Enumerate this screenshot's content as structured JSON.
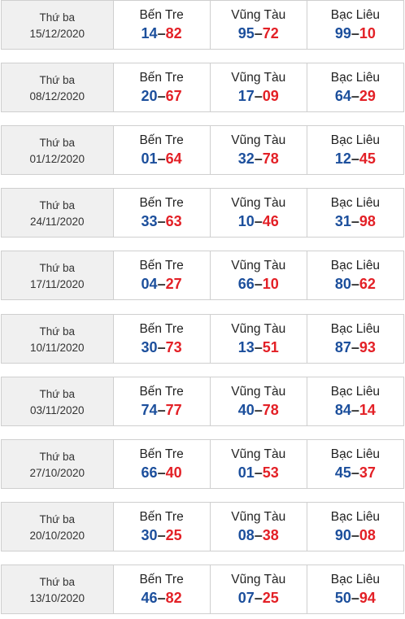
{
  "rows": [
    {
      "weekday": "Thứ ba",
      "date": "15/12/2020",
      "cells": [
        {
          "province": "Bến Tre",
          "a": "14",
          "b": "82"
        },
        {
          "province": "Vũng Tàu",
          "a": "95",
          "b": "72"
        },
        {
          "province": "Bạc Liêu",
          "a": "99",
          "b": "10"
        }
      ]
    },
    {
      "weekday": "Thứ ba",
      "date": "08/12/2020",
      "cells": [
        {
          "province": "Bến Tre",
          "a": "20",
          "b": "67"
        },
        {
          "province": "Vũng Tàu",
          "a": "17",
          "b": "09"
        },
        {
          "province": "Bạc Liêu",
          "a": "64",
          "b": "29"
        }
      ]
    },
    {
      "weekday": "Thứ ba",
      "date": "01/12/2020",
      "cells": [
        {
          "province": "Bến Tre",
          "a": "01",
          "b": "64"
        },
        {
          "province": "Vũng Tàu",
          "a": "32",
          "b": "78"
        },
        {
          "province": "Bạc Liêu",
          "a": "12",
          "b": "45"
        }
      ]
    },
    {
      "weekday": "Thứ ba",
      "date": "24/11/2020",
      "cells": [
        {
          "province": "Bến Tre",
          "a": "33",
          "b": "63"
        },
        {
          "province": "Vũng Tàu",
          "a": "10",
          "b": "46"
        },
        {
          "province": "Bạc Liêu",
          "a": "31",
          "b": "98"
        }
      ]
    },
    {
      "weekday": "Thứ ba",
      "date": "17/11/2020",
      "cells": [
        {
          "province": "Bến Tre",
          "a": "04",
          "b": "27"
        },
        {
          "province": "Vũng Tàu",
          "a": "66",
          "b": "10"
        },
        {
          "province": "Bạc Liêu",
          "a": "80",
          "b": "62"
        }
      ]
    },
    {
      "weekday": "Thứ ba",
      "date": "10/11/2020",
      "cells": [
        {
          "province": "Bến Tre",
          "a": "30",
          "b": "73"
        },
        {
          "province": "Vũng Tàu",
          "a": "13",
          "b": "51"
        },
        {
          "province": "Bạc Liêu",
          "a": "87",
          "b": "93"
        }
      ]
    },
    {
      "weekday": "Thứ ba",
      "date": "03/11/2020",
      "cells": [
        {
          "province": "Bến Tre",
          "a": "74",
          "b": "77"
        },
        {
          "province": "Vũng Tàu",
          "a": "40",
          "b": "78"
        },
        {
          "province": "Bạc Liêu",
          "a": "84",
          "b": "14"
        }
      ]
    },
    {
      "weekday": "Thứ ba",
      "date": "27/10/2020",
      "cells": [
        {
          "province": "Bến Tre",
          "a": "66",
          "b": "40"
        },
        {
          "province": "Vũng Tàu",
          "a": "01",
          "b": "53"
        },
        {
          "province": "Bạc Liêu",
          "a": "45",
          "b": "37"
        }
      ]
    },
    {
      "weekday": "Thứ ba",
      "date": "20/10/2020",
      "cells": [
        {
          "province": "Bến Tre",
          "a": "30",
          "b": "25"
        },
        {
          "province": "Vũng Tàu",
          "a": "08",
          "b": "38"
        },
        {
          "province": "Bạc Liêu",
          "a": "90",
          "b": "08"
        }
      ]
    },
    {
      "weekday": "Thứ ba",
      "date": "13/10/2020",
      "cells": [
        {
          "province": "Bến Tre",
          "a": "46",
          "b": "82"
        },
        {
          "province": "Vũng Tàu",
          "a": "07",
          "b": "25"
        },
        {
          "province": "Bạc Liêu",
          "a": "50",
          "b": "94"
        }
      ]
    }
  ],
  "separator": "–",
  "colors": {
    "first_number": "#1c4f9c",
    "second_number": "#e32026",
    "date_bg": "#f0f0f0",
    "border": "#cfcfcf"
  }
}
